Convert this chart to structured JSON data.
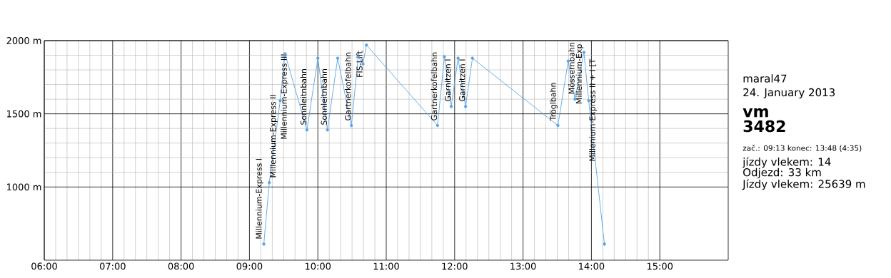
{
  "chart_data": {
    "type": "line",
    "x": [
      9.21,
      9.29,
      9.45,
      9.52,
      9.84,
      10.0,
      10.14,
      10.29,
      10.49,
      10.59,
      10.66,
      10.71,
      11.75,
      11.85,
      11.95,
      12.05,
      12.16,
      12.26,
      13.51,
      13.66,
      13.76,
      13.89,
      13.96,
      14.19
    ],
    "values": [
      610,
      1030,
      1590,
      1910,
      1390,
      1880,
      1390,
      1880,
      1420,
      1890,
      1840,
      1970,
      1420,
      1890,
      1550,
      1880,
      1550,
      1880,
      1420,
      1860,
      1600,
      1920,
      1590,
      610
    ],
    "color": "#5aa5e6",
    "marker": "circle",
    "line_style": "solid",
    "grid": true,
    "xlim": [
      6,
      16
    ],
    "xticks": [
      {
        "value": 6,
        "label": "06:00"
      },
      {
        "value": 7,
        "label": "07:00"
      },
      {
        "value": 8,
        "label": "08:00"
      },
      {
        "value": 9,
        "label": "09:00"
      },
      {
        "value": 10,
        "label": "10:00"
      },
      {
        "value": 11,
        "label": "11:00"
      },
      {
        "value": 12,
        "label": "12:00"
      },
      {
        "value": 13,
        "label": "13:00"
      },
      {
        "value": 14,
        "label": "14:00"
      },
      {
        "value": 15,
        "label": "15:00"
      }
    ],
    "ylim": [
      500,
      2000
    ],
    "yticks": [
      {
        "value": 1000,
        "label": "1000 m"
      },
      {
        "value": 1500,
        "label": "1500 m"
      },
      {
        "value": 2000,
        "label": "2000 m"
      }
    ],
    "annotations": [
      {
        "text": "Millennium-Express I",
        "x": 9.21,
        "y": 610
      },
      {
        "text": "Millennium-Express II",
        "x": 9.29,
        "y": 1030
      },
      {
        "text": "Millennium-Express III",
        "x": 9.45,
        "y": 1590
      },
      {
        "text": "Sonnleitnbahn",
        "x": 9.84,
        "y": 1390
      },
      {
        "text": "Sonnleitnbahn",
        "x": 10.14,
        "y": 1390
      },
      {
        "text": "Gartnerkofelbahn",
        "x": 10.49,
        "y": 1420
      },
      {
        "text": "FIS-Lift",
        "x": 10.66,
        "y": 1840
      },
      {
        "text": "Gartnerkofelbahn",
        "x": 11.75,
        "y": 1420
      },
      {
        "text": "Garnitzen I",
        "x": 11.95,
        "y": 1550
      },
      {
        "text": "Garnitzen I",
        "x": 12.16,
        "y": 1550
      },
      {
        "text": "Tröglbahn",
        "x": 13.51,
        "y": 1420
      },
      {
        "text": "Mössernbahn",
        "x": 13.76,
        "y": 1600
      },
      {
        "text": "Millennium-Exp",
        "x": 13.89,
        "y": 1920
      },
      {
        "text": "Millenium-Express II + I [T",
        "x": 13.96,
        "y": 1590
      },
      "maral47",
      "24. January 2013",
      "vm",
      "3482",
      "zač.: 09:13  konec: 13:48 (4:35)",
      "jízdy vlekem: 14",
      "Odjezd: 33 km",
      "Jízdy vlekem: 25639 m"
    ]
  }
}
